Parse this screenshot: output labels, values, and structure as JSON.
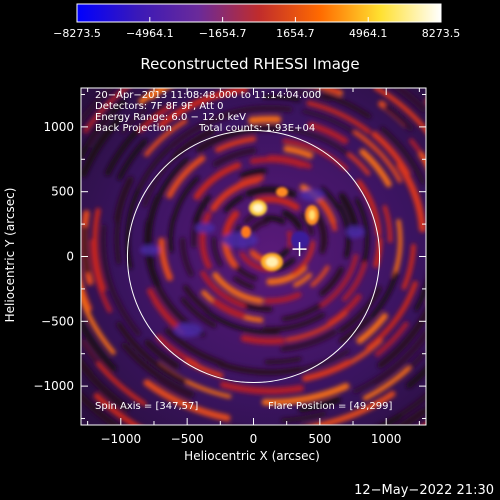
{
  "colorbar": {
    "tick_labels": [
      "−8273.5",
      "−4964.1",
      "−1654.7",
      "1654.7",
      "4964.1",
      "8273.5"
    ],
    "gradient_colors": [
      "#0000ff",
      "#3a19b8",
      "#6a2a9a",
      "#c02c2c",
      "#ff6a00",
      "#ffe030",
      "#ffffff"
    ]
  },
  "plot": {
    "title": "Reconstructed RHESSI Image",
    "info_lines": [
      "20−Apr−2013 11:08:48.000 to 11:14:04.000",
      "Detectors: 7F 8F 9F, Att 0",
      "Energy Range: 6.0 − 12.0 keV"
    ],
    "method": "Back Projection",
    "total_counts": "Total counts: 1.93E+04",
    "spin_axis": "Spin Axis = [347,57]",
    "flare_position": "Flare Position = [49,299]",
    "x_axis_label": "Heliocentric X (arcsec)",
    "y_axis_label": "Heliocentric Y (arcsec)",
    "x_tick_labels": [
      "−1000",
      "−500",
      "0",
      "500",
      "1000"
    ],
    "y_tick_labels": [
      "1000",
      "500",
      "0",
      "−500",
      "−1000"
    ],
    "x_range": [
      -1300,
      1300
    ],
    "y_range": [
      -1300,
      1300
    ],
    "solar_radius_arcsec": 950,
    "marker_position": [
      347,
      57
    ]
  },
  "timestamp": "12−May−2022 21:30"
}
